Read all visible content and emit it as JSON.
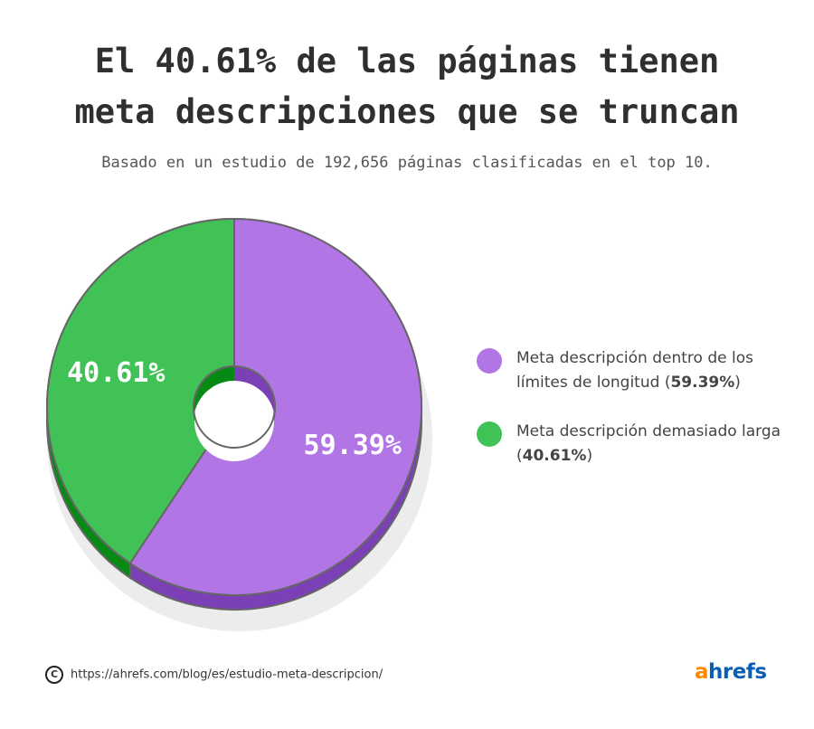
{
  "title_lines": [
    "El 40.61% de las páginas tienen",
    "meta descripciones que se truncan"
  ],
  "subtitle": "Basado en un estudio de 192,656 páginas clasificadas en el top 10.",
  "chart_data": {
    "type": "pie",
    "style": "3d-donut",
    "title": "El 40.61% de las páginas tienen meta descripciones que se truncan",
    "subtitle": "Basado en un estudio de 192,656 páginas clasificadas en el top 10.",
    "slices": [
      {
        "value": 59.39,
        "data_label": "59.39%",
        "legend_text": "Meta descripción dentro de los límites de longitud",
        "legend_value": "59.39%",
        "color": "#b175e6",
        "side_color": "#7c40b6"
      },
      {
        "value": 40.61,
        "data_label": "40.61%",
        "legend_text": "Meta descripción demasiado larga",
        "legend_value": "40.61%",
        "color": "#41c257",
        "side_color": "#078a14"
      }
    ],
    "legend_position": "right"
  },
  "footer": {
    "copyright_icon": "copyright-icon",
    "url": "https://ahrefs.com/blog/es/estudio-meta-descripcion/"
  },
  "logo": {
    "a": "a",
    "rest": "hrefs"
  }
}
